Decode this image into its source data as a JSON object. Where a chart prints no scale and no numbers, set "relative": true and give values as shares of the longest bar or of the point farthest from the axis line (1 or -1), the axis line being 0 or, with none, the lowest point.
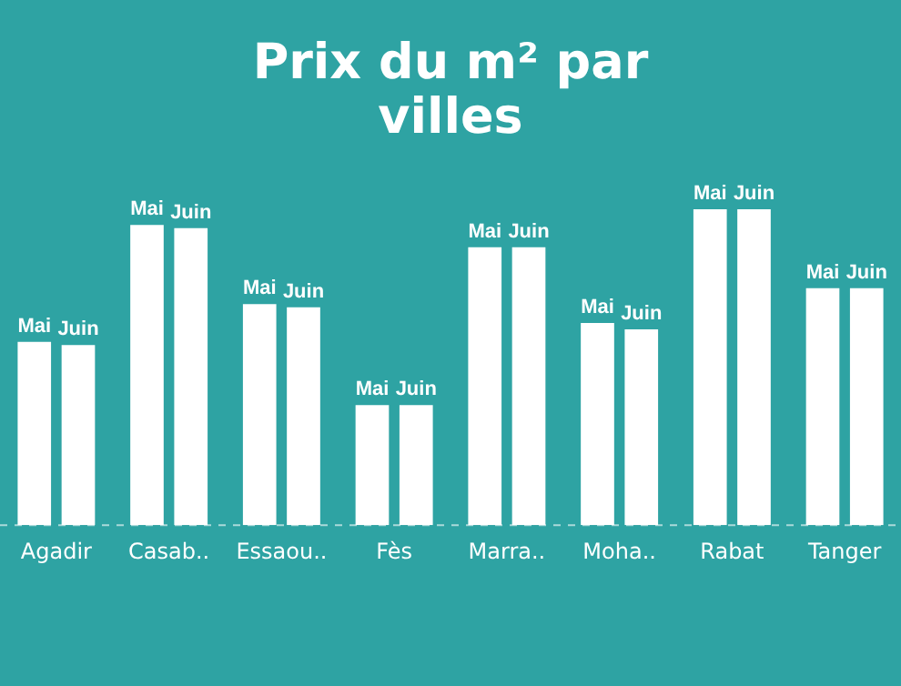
{
  "chart_data": {
    "type": "bar",
    "title": "Prix du m² par villes",
    "relative": true,
    "legend": false,
    "grid": false,
    "categories": [
      "Agadir",
      "Casab..",
      "Essaou..",
      "Fès",
      "Marra..",
      "Moha..",
      "Rabat",
      "Tanger"
    ],
    "series": [
      {
        "name": "Mai",
        "color": "#ffffff",
        "values": [
          0.58,
          0.95,
          0.7,
          0.38,
          0.88,
          0.64,
          1,
          0.75
        ]
      },
      {
        "name": "Juin",
        "color": "#ffffff",
        "values": [
          0.57,
          0.94,
          0.69,
          0.38,
          0.88,
          0.62,
          1,
          0.75
        ]
      }
    ]
  }
}
